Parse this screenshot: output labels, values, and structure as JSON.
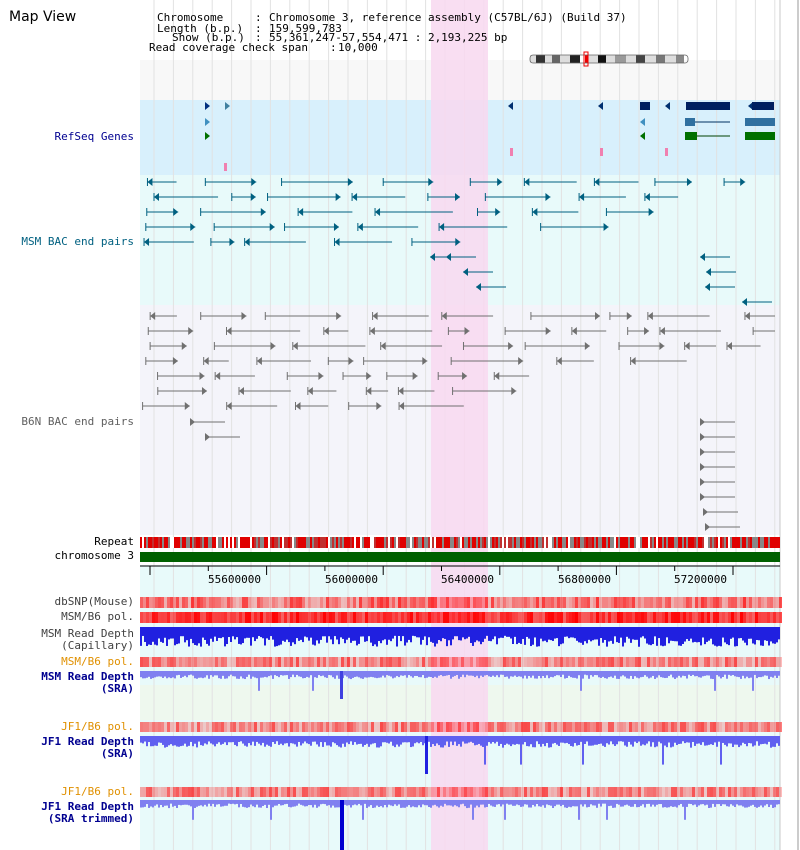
{
  "header": {
    "title": "Map View",
    "info": [
      {
        "key": "Chromosome",
        "value": "Chromosome 3, reference assembly (C57BL/6J) (Build 37)"
      },
      {
        "key": "Length (b.p.)",
        "value": "159,599,783"
      },
      {
        "key": "Show (b.p.)",
        "value": "55,361,247-57,554,471 : 2,193,225 bp"
      },
      {
        "key": "Read coverage check span",
        "value": "10,000"
      }
    ]
  },
  "tracks": {
    "refseq": "RefSeq Genes",
    "msm_bac": "MSM BAC end pairs",
    "b6n_bac": "B6N BAC end pairs",
    "repeat": "Repeat",
    "chromosome": "chromosome 3",
    "dbsnp": "dbSNP(Mouse)",
    "msm_b6_pol": "MSM/B6 pol.",
    "msm_read_depth_cap_1": "MSM Read Depth",
    "msm_read_depth_cap_2": "(Capillary)",
    "msm_b6_pol_2": "MSM/B6 pol.",
    "msm_read_depth_sra_1": "MSM Read Depth",
    "msm_read_depth_sra_2": "(SRA)",
    "jf1_b6_pol": "JF1/B6 pol.",
    "jf1_read_depth_sra_1": "JF1 Read Depth",
    "jf1_read_depth_sra_2": "(SRA)",
    "jf1_b6_pol_2": "JF1/B6 pol.",
    "jf1_read_depth_trim_1": "JF1 Read Depth",
    "jf1_read_depth_trim_2": "(SRA trimmed)"
  },
  "axis": {
    "ticks": [
      "55600000",
      "56000000",
      "56400000",
      "56800000",
      "57200000"
    ]
  },
  "colors": {
    "gene_blue": "#003080",
    "gene_green": "#007000",
    "msm_bac": "#006080",
    "b6n_bac": "#707070",
    "highlight": "#f8d8f0",
    "label_navy": "#000090",
    "label_orange": "#e09000"
  }
}
